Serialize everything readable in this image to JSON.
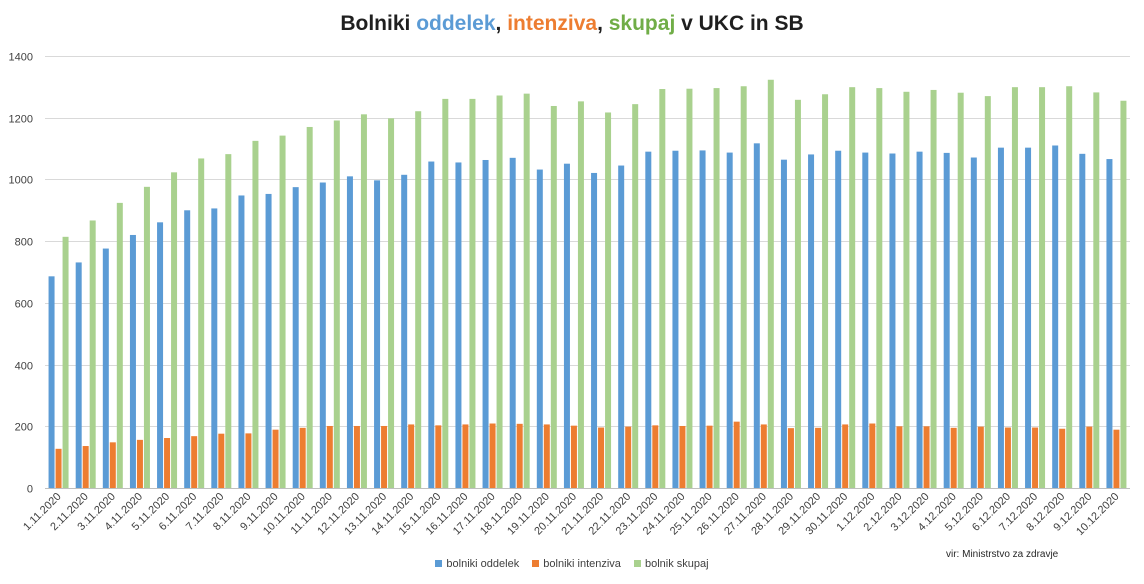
{
  "title_parts": {
    "p1": "Bolniki ",
    "p2": "oddelek",
    "p3": ", ",
    "p4": "intenziva",
    "p5": ", ",
    "p6": "skupaj",
    "p7": " v UKC in SB"
  },
  "source": "vir: Ministrstvo za zdravje",
  "chart_data": {
    "type": "bar",
    "title": "Bolniki oddelek, intenziva, skupaj v UKC in SB",
    "ylim": [
      0,
      1400
    ],
    "yticks": [
      0,
      200,
      400,
      600,
      800,
      1000,
      1200,
      1400
    ],
    "grid": true,
    "legend_position": "bottom",
    "categories": [
      "1.11.2020",
      "2.11.2020",
      "3.11.2020",
      "4.11.2020",
      "5.11.2020",
      "6.11.2020",
      "7.11.2020",
      "8.11.2020",
      "9.11.2020",
      "10.11.2020",
      "11.11.2020",
      "12.11.2020",
      "13.11.2020",
      "14.11.2020",
      "15.11.2020",
      "16.11.2020",
      "17.11.2020",
      "18.11.2020",
      "19.11.2020",
      "20.11.2020",
      "21.11.2020",
      "22.11.2020",
      "23.11.2020",
      "24.11.2020",
      "25.11.2020",
      "26.11.2020",
      "27.11.2020",
      "28.11.2020",
      "29.11.2020",
      "30.11.2020",
      "1.12.2020",
      "2.12.2020",
      "3.12.2020",
      "4.12.2020",
      "5.12.2020",
      "6.12.2020",
      "7.12.2020",
      "8.12.2020",
      "9.12.2020",
      "10.12.2020"
    ],
    "series": [
      {
        "name": "bolniki oddelek",
        "color": "#5b9bd5",
        "values": [
          686,
          731,
          776,
          820,
          861,
          900,
          906,
          948,
          953,
          975,
          990,
          1010,
          997,
          1015,
          1058,
          1055,
          1063,
          1070,
          1032,
          1051,
          1021,
          1045,
          1090,
          1093,
          1094,
          1087,
          1117,
          1064,
          1081,
          1093,
          1087,
          1084,
          1090,
          1086,
          1071,
          1103,
          1103,
          1110,
          1083,
          1066
        ]
      },
      {
        "name": "bolniki intenziva",
        "color": "#ed7d31",
        "values": [
          127,
          136,
          148,
          156,
          162,
          168,
          176,
          177,
          189,
          195,
          201,
          201,
          201,
          206,
          203,
          206,
          209,
          208,
          206,
          202,
          196,
          199,
          203,
          201,
          202,
          215,
          206,
          194,
          195,
          206,
          209,
          200,
          200,
          195,
          199,
          196,
          196,
          192,
          199,
          189
        ]
      },
      {
        "name": "bolnik skupaj",
        "color": "#a9d18e",
        "values": [
          814,
          867,
          924,
          976,
          1023,
          1068,
          1082,
          1125,
          1142,
          1170,
          1191,
          1211,
          1198,
          1221,
          1261,
          1261,
          1272,
          1278,
          1238,
          1253,
          1217,
          1244,
          1293,
          1294,
          1296,
          1302,
          1323,
          1258,
          1276,
          1299,
          1296,
          1284,
          1290,
          1281,
          1270,
          1299,
          1299,
          1302,
          1282,
          1255
        ]
      }
    ]
  }
}
